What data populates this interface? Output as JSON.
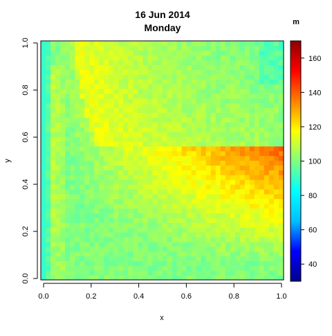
{
  "chart_data": {
    "type": "heatmap",
    "title": "16 Jun 2014",
    "subtitle": "Monday",
    "xlabel": "x",
    "ylabel": "y",
    "xlim": [
      0,
      1
    ],
    "ylim": [
      0,
      1
    ],
    "x_ticks": [
      "0.0",
      "0.2",
      "0.4",
      "0.6",
      "0.8",
      "1.0"
    ],
    "y_ticks": [
      "0.0",
      "0.2",
      "0.4",
      "0.6",
      "0.8",
      "1.0"
    ],
    "grid_resolution": 50,
    "colorbar": {
      "title": "m",
      "range": [
        30,
        170
      ],
      "ticks": [
        "40",
        "60",
        "80",
        "100",
        "120",
        "140",
        "160"
      ],
      "colors": [
        "#00008b",
        "#0000ff",
        "#00bfff",
        "#00ffff",
        "#80ff80",
        "#ffff00",
        "#ff8000",
        "#ff0000",
        "#8b0000"
      ]
    },
    "values_summary": {
      "background": 100,
      "left_edge": 90,
      "top_edge": 95,
      "band_peak": 115,
      "band_description": "curved band of elevated values near x*y = 0.15, values decreasing toward edges"
    }
  }
}
